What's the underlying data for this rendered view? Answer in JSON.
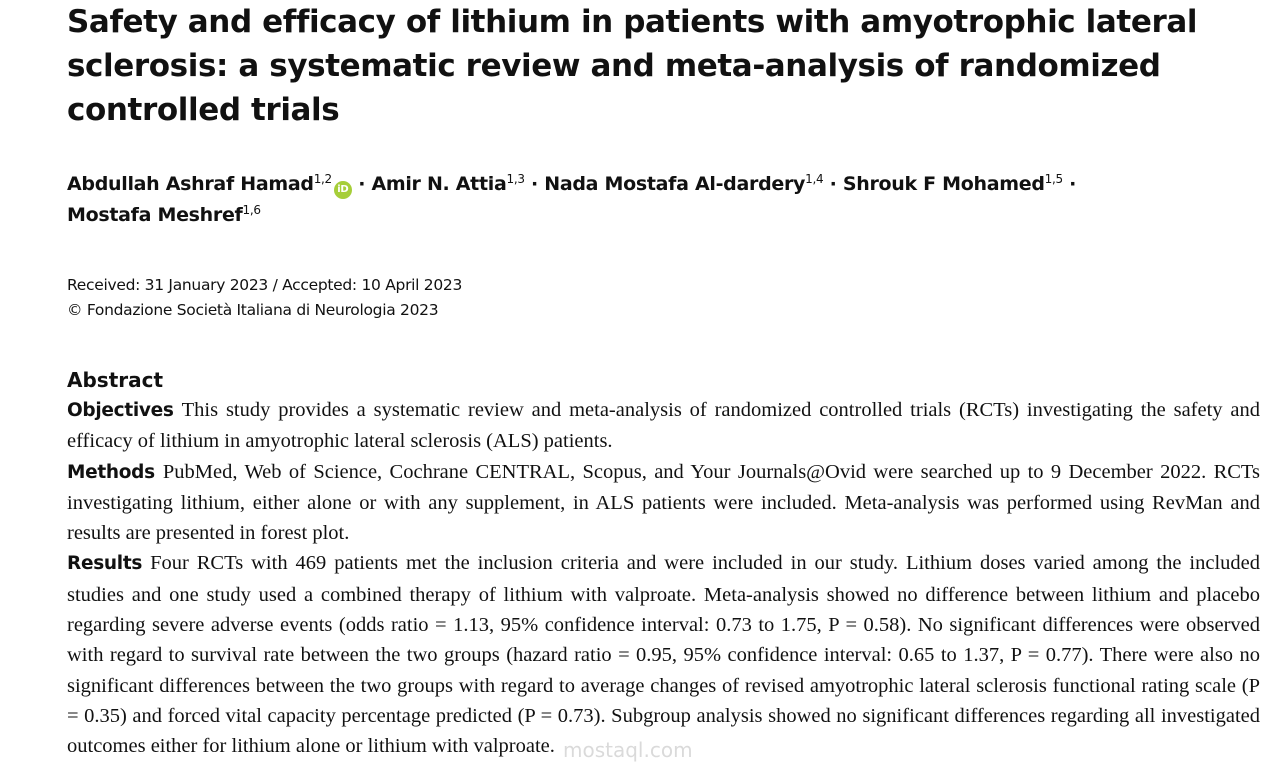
{
  "header": {
    "title_lines": [
      "Safety and efficacy of lithium in patients with amyotrophic lateral",
      "sclerosis: a systematic review and meta-analysis of randomized",
      "controlled trials"
    ]
  },
  "authors": [
    {
      "name": "Abdullah Ashraf Hamad",
      "affiliations": "1,2"
    },
    {
      "name": "Amir N. Attia",
      "affiliations": "1,3"
    },
    {
      "name": "Nada Mostafa Al-dardery",
      "affiliations": "1,4"
    },
    {
      "name": "Shrouk F Mohamed",
      "affiliations": "1,5"
    },
    {
      "name": "Mostafa Meshref",
      "affiliations": "1,6"
    }
  ],
  "dates": {
    "received": "Received: 31 January 2023 / Accepted: 10 April 2023",
    "copyright": "© Fondazione Società Italiana di Neurologia 2023"
  },
  "abstract": {
    "heading": "Abstract",
    "sections": [
      {
        "label": "Objectives",
        "text": "This study provides a systematic review and meta-analysis of randomized controlled trials (RCTs) investigating the safety and efficacy of lithium in amyotrophic lateral sclerosis (ALS) patients."
      },
      {
        "label": "Methods",
        "text": "PubMed, Web of Science, Cochrane CENTRAL, Scopus, and Your Journals@Ovid were searched up to 9 December 2022. RCTs investigating lithium, either alone or with any supplement, in ALS patients were included. Meta-analysis was performed using RevMan and results are presented in forest plot."
      },
      {
        "label": "Results",
        "text": "Four RCTs with 469 patients met the inclusion criteria and were included in our study. Lithium doses varied among the included studies and one study used a combined therapy of lithium with valproate. Meta-analysis showed no difference between lithium and placebo regarding severe adverse events (odds ratio = 1.13, 95% confidence interval: 0.73 to 1.75, P = 0.58). No significant differences were observed with regard to survival rate between the two groups (hazard ratio = 0.95, 95% confidence interval: 0.65 to 1.37, P = 0.77). There were also no significant differences between the two groups with regard to average changes of revised amyotrophic lateral sclerosis functional rating scale (P = 0.35) and forced vital capacity percentage predicted (P = 0.73). Subgroup analysis showed no significant differences regarding all investigated outcomes either for lithium alone or lithium with valproate."
      }
    ]
  },
  "watermark": "mostaql.com"
}
